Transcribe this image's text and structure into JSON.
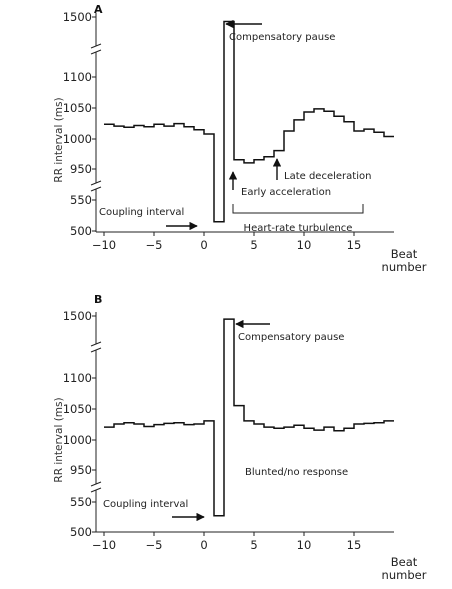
{
  "chart_data": [
    {
      "type": "line",
      "panel": "A",
      "xlabel": "Beat number",
      "ylabel": "RR interval (ms)",
      "x_ticks": [
        "-10",
        "-5",
        "0",
        "5",
        "10",
        "15"
      ],
      "y_ticks": [
        "500",
        "550",
        "950",
        "1000",
        "1050",
        "1100",
        "1500"
      ],
      "xlim": [
        -10,
        19
      ],
      "axis_breaks": [
        [
          550,
          950
        ],
        [
          1100,
          1500
        ]
      ],
      "step_series": {
        "x": [
          -10,
          -9,
          -8,
          -7,
          -6,
          -5,
          -4,
          -3,
          -2,
          -1,
          0,
          1,
          2,
          3,
          4,
          5,
          6,
          7,
          8,
          9,
          10,
          11,
          12,
          13,
          14,
          15,
          16,
          17,
          18
        ],
        "y": [
          1023,
          1020,
          1018,
          1021,
          1019,
          1023,
          1020,
          1024,
          1019,
          1014,
          1007,
          515,
          1470,
          965,
          960,
          965,
          970,
          980,
          1012,
          1030,
          1043,
          1048,
          1044,
          1036,
          1027,
          1012,
          1015,
          1010,
          1003
        ],
        "x_end": 19,
        "y_end": 995
      },
      "annotations": {
        "compensatory_pause": "Compensatory pause",
        "coupling_interval": "Coupling interval",
        "early_acceleration": "Early acceleration",
        "late_deceleration": "Late deceleration",
        "heart_rate_turbulence": "Heart-rate turbulence"
      }
    },
    {
      "type": "line",
      "panel": "B",
      "xlabel": "Beat number",
      "ylabel": "RR interval (ms)",
      "x_ticks": [
        "-10",
        "-5",
        "0",
        "5",
        "10",
        "15"
      ],
      "y_ticks": [
        "500",
        "550",
        "950",
        "1000",
        "1050",
        "1100",
        "1500"
      ],
      "xlim": [
        -10,
        19
      ],
      "axis_breaks": [
        [
          550,
          950
        ],
        [
          1100,
          1500
        ]
      ],
      "step_series": {
        "x": [
          -10,
          -9,
          -8,
          -7,
          -6,
          -5,
          -4,
          -3,
          -2,
          -1,
          0,
          1,
          2,
          3,
          4,
          5,
          6,
          7,
          8,
          9,
          10,
          11,
          12,
          13,
          14,
          15,
          16,
          17,
          18
        ],
        "y": [
          1020,
          1025,
          1027,
          1025,
          1021,
          1024,
          1026,
          1027,
          1024,
          1025,
          1030,
          527,
          1480,
          1055,
          1030,
          1025,
          1020,
          1018,
          1020,
          1023,
          1018,
          1015,
          1020,
          1014,
          1018,
          1025,
          1026,
          1027,
          1030
        ],
        "x_end": 19,
        "y_end": 1030
      },
      "annotations": {
        "compensatory_pause": "Compensatory pause",
        "coupling_interval": "Coupling interval",
        "blunted_response": "Blunted/no response"
      }
    }
  ]
}
